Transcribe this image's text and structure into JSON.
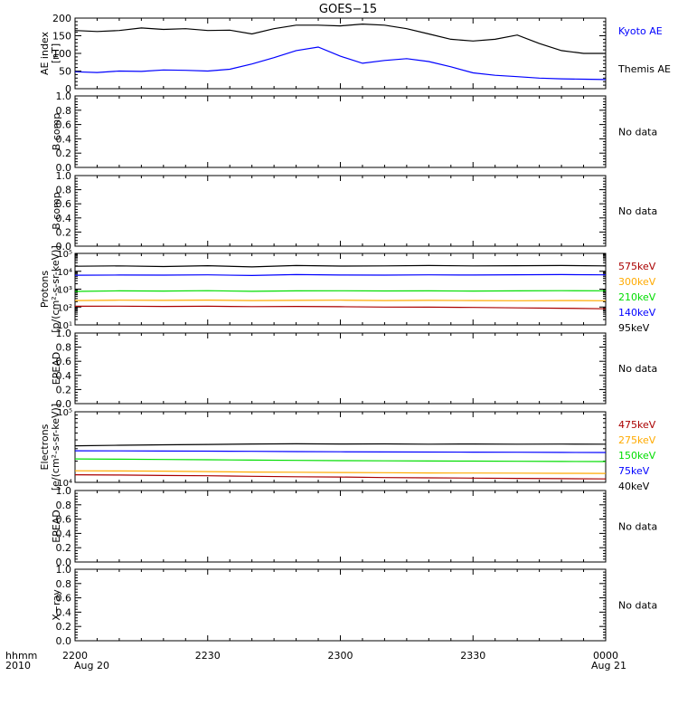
{
  "title": "GOES−15",
  "time_axis": {
    "ticks": [
      "2200",
      "2230",
      "2300",
      "2330",
      "0000"
    ],
    "date_left": "Aug 20",
    "date_right": "Aug 21",
    "prefix_top": "hhmm",
    "prefix_bottom": "2010"
  },
  "no_data_label": "No data",
  "colors": {
    "black": "#000000",
    "blue": "#0000ff",
    "green": "#00dd00",
    "orange": "#ffaa00",
    "red": "#aa0000"
  },
  "chart_data": [
    {
      "type": "line",
      "panel": "ae",
      "ylabel": [
        "AE index",
        "[nT]"
      ],
      "ylim": [
        0,
        200
      ],
      "yticks": [
        "0",
        "50",
        "100",
        "150",
        "200"
      ],
      "x": [
        0,
        5,
        10,
        15,
        20,
        25,
        30,
        35,
        40,
        45,
        50,
        55,
        60,
        65,
        70,
        75,
        80,
        85,
        90,
        95,
        100,
        105,
        110,
        115,
        120
      ],
      "series": [
        {
          "name": "Kyoto AE",
          "color": "blue",
          "values": [
            48,
            46,
            50,
            49,
            53,
            52,
            50,
            55,
            70,
            88,
            108,
            118,
            92,
            72,
            80,
            85,
            77,
            62,
            45,
            38,
            34,
            30,
            28,
            27,
            26
          ]
        },
        {
          "name": "Themis AE",
          "color": "black",
          "values": [
            165,
            162,
            165,
            172,
            168,
            170,
            165,
            166,
            155,
            170,
            180,
            180,
            178,
            183,
            180,
            170,
            155,
            140,
            135,
            140,
            152,
            128,
            108,
            100,
            100
          ]
        }
      ]
    },
    {
      "type": "line",
      "panel": "bcomp1",
      "ylabel": [
        "B comp"
      ],
      "ylim": [
        0,
        1
      ],
      "yticks": [
        "0.0",
        "0.2",
        "0.4",
        "0.6",
        "0.8",
        "1.0"
      ],
      "series": []
    },
    {
      "type": "line",
      "panel": "bcomp2",
      "ylabel": [
        "B comp"
      ],
      "ylim": [
        0,
        1
      ],
      "yticks": [
        "0.0",
        "0.2",
        "0.4",
        "0.6",
        "0.8",
        "1.0"
      ],
      "series": []
    },
    {
      "type": "line",
      "panel": "protons",
      "log_scale": true,
      "ylabel": [
        "Protons",
        "[p/(cm²-s-sr-keV)]"
      ],
      "ylim": [
        10,
        100000
      ],
      "ytick_exponents": [
        1,
        2,
        3,
        4,
        5
      ],
      "x": [
        0,
        10,
        20,
        30,
        40,
        50,
        60,
        70,
        80,
        90,
        100,
        110,
        120
      ],
      "series": [
        {
          "name": "575keV",
          "color": "red",
          "values": [
            110,
            112,
            108,
            110,
            105,
            108,
            104,
            100,
            98,
            95,
            90,
            85,
            80
          ]
        },
        {
          "name": "300keV",
          "color": "orange",
          "values": [
            230,
            240,
            235,
            245,
            230,
            235,
            240,
            230,
            235,
            230,
            225,
            230,
            225
          ]
        },
        {
          "name": "210keV",
          "color": "green",
          "values": [
            750,
            800,
            780,
            820,
            760,
            800,
            810,
            790,
            800,
            780,
            800,
            820,
            810
          ]
        },
        {
          "name": "140keV",
          "color": "blue",
          "values": [
            6000,
            6200,
            6100,
            6300,
            5800,
            6500,
            6200,
            6100,
            6300,
            6200,
            6400,
            6500,
            6300
          ]
        },
        {
          "name": "95keV",
          "color": "black",
          "values": [
            19000,
            20000,
            18500,
            20500,
            17500,
            21000,
            19500,
            20000,
            21000,
            20000,
            20500,
            21000,
            20000
          ]
        }
      ]
    },
    {
      "type": "line",
      "panel": "epead1",
      "ylabel": [
        "EPEAD"
      ],
      "ylim": [
        0,
        1
      ],
      "yticks": [
        "0.0",
        "0.2",
        "0.4",
        "0.6",
        "0.8",
        "1.0"
      ],
      "series": []
    },
    {
      "type": "line",
      "panel": "electrons",
      "log_scale": true,
      "ylabel": [
        "Electrons",
        "[e/(cm²-s-sr-keV)]"
      ],
      "ylim": [
        10000,
        100000
      ],
      "ytick_exponents": [
        4,
        5
      ],
      "x": [
        0,
        10,
        20,
        30,
        40,
        50,
        60,
        70,
        80,
        90,
        100,
        110,
        120
      ],
      "series": [
        {
          "name": "475keV",
          "color": "red",
          "values": [
            12800,
            12700,
            12500,
            12400,
            12200,
            12000,
            11900,
            11700,
            11600,
            11500,
            11400,
            11300,
            11200
          ]
        },
        {
          "name": "275keV",
          "color": "orange",
          "values": [
            14600,
            14500,
            14400,
            14200,
            14000,
            13900,
            13800,
            13700,
            13600,
            13550,
            13500,
            13450,
            13400
          ]
        },
        {
          "name": "150keV",
          "color": "green",
          "values": [
            21500,
            21300,
            21100,
            20900,
            20700,
            20500,
            20300,
            20200,
            20100,
            20000,
            19900,
            19800,
            19700
          ]
        },
        {
          "name": "75keV",
          "color": "blue",
          "values": [
            28000,
            27900,
            27800,
            27700,
            27500,
            27300,
            27100,
            27000,
            26900,
            26800,
            26700,
            26600,
            26500
          ]
        },
        {
          "name": "40keV",
          "color": "black",
          "values": [
            33000,
            33500,
            34000,
            34500,
            35000,
            35200,
            35000,
            35100,
            34800,
            35000,
            34800,
            34900,
            34800
          ]
        }
      ]
    },
    {
      "type": "line",
      "panel": "epead2",
      "ylabel": [
        "EPEAD"
      ],
      "ylim": [
        0,
        1
      ],
      "yticks": [
        "0.0",
        "0.2",
        "0.4",
        "0.6",
        "0.8",
        "1.0"
      ],
      "series": []
    },
    {
      "type": "line",
      "panel": "xray",
      "ylabel": [
        "X−ray"
      ],
      "ylim": [
        0,
        1
      ],
      "yticks": [
        "0.0",
        "0.2",
        "0.4",
        "0.6",
        "0.8",
        "1.0"
      ],
      "series": []
    }
  ]
}
